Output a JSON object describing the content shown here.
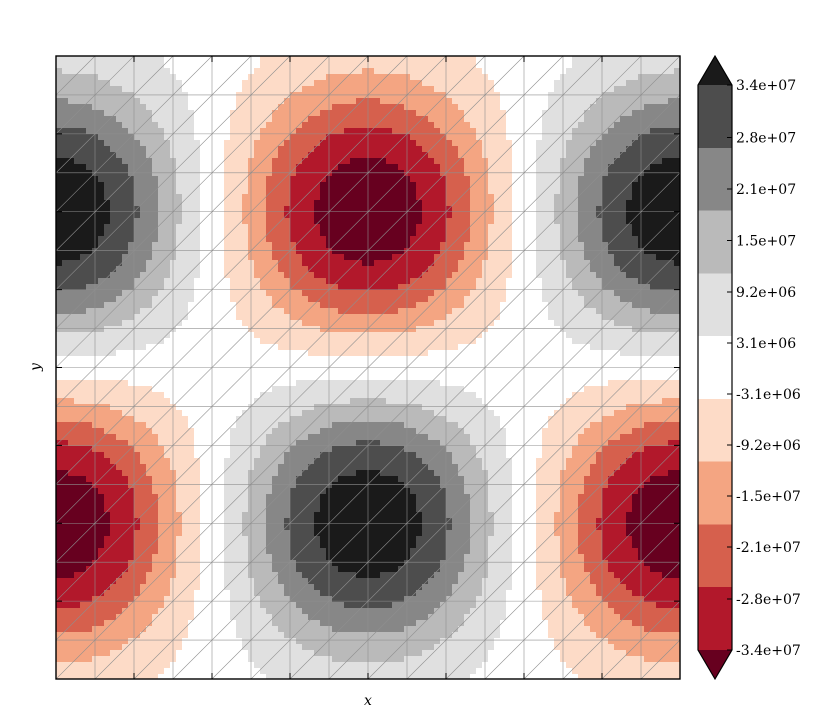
{
  "chart_data": {
    "type": "heatmap",
    "subtype": "filled-contour",
    "title": "",
    "xlabel": "x",
    "ylabel": "y",
    "grid": true,
    "overlay": "triangular mesh",
    "colormap": "RdGy",
    "field": {
      "description": "Tiled pattern of highs and lows",
      "peaks": [
        {
          "col": 0.0,
          "row": 0.25,
          "value": 34000000
        },
        {
          "col": 1.0,
          "row": 0.25,
          "value": 34000000
        },
        {
          "col": 0.5,
          "row": 0.75,
          "value": 34000000
        },
        {
          "col": 0.5,
          "row": 0.25,
          "value": -34000000
        },
        {
          "col": 0.0,
          "row": 0.75,
          "value": -34000000
        },
        {
          "col": 1.0,
          "row": 0.75,
          "value": -34000000
        }
      ]
    },
    "colorbar": {
      "extend": "both",
      "tick_labels": [
        "3.4e+07",
        "2.8e+07",
        "2.1e+07",
        "1.5e+07",
        "9.2e+06",
        "3.1e+06",
        "-3.1e+06",
        "-9.2e+06",
        "-1.5e+07",
        "-2.1e+07",
        "-2.8e+07",
        "-3.4e+07"
      ],
      "levels": [
        34000000,
        28000000,
        21000000,
        15000000,
        9200000,
        3100000,
        -3100000,
        -9200000,
        -15000000,
        -21000000,
        -28000000,
        -34000000
      ],
      "band_colors": [
        "#1a1a1a",
        "#4d4d4d",
        "#878787",
        "#bababa",
        "#e0e0e0",
        "#ffffff",
        "#fddbc7",
        "#f4a582",
        "#d6604d",
        "#b2182b",
        "#67001f"
      ]
    }
  }
}
